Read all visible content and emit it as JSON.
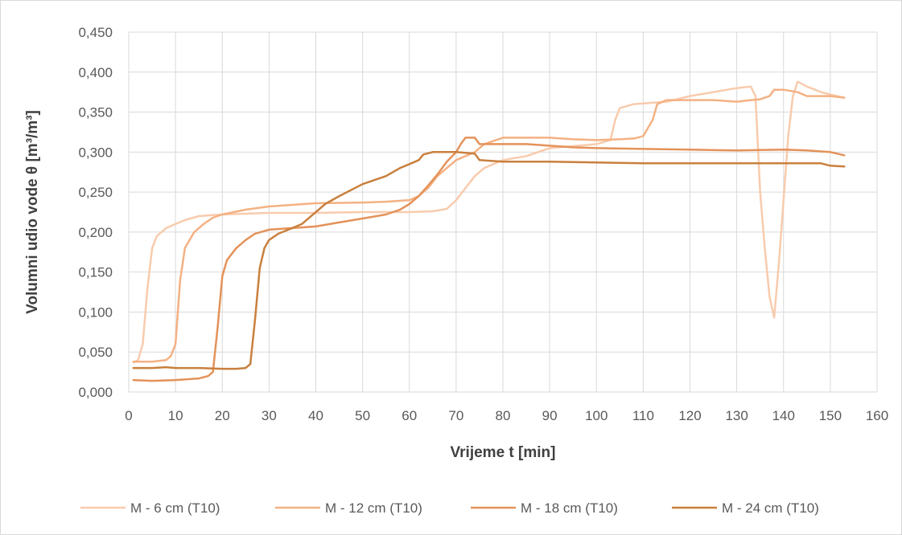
{
  "chart_data": {
    "type": "line",
    "title": "",
    "xlabel": "Vrijeme t [min]",
    "ylabel": "Volumni udio vode θ [m³/m³]",
    "xlim": [
      0,
      160
    ],
    "ylim": [
      0,
      0.45
    ],
    "x_ticks": [
      "0",
      "10",
      "20",
      "30",
      "40",
      "50",
      "60",
      "70",
      "80",
      "90",
      "100",
      "110",
      "120",
      "130",
      "140",
      "150",
      "160"
    ],
    "y_ticks": [
      "0,000",
      "0,050",
      "0,100",
      "0,150",
      "0,200",
      "0,250",
      "0,300",
      "0,350",
      "0,400",
      "0,450"
    ],
    "grid": true,
    "legend_position": "bottom",
    "series": [
      {
        "name": "M - 6 cm (T10)",
        "color": "#f8cbad",
        "points": [
          [
            1,
            0.037
          ],
          [
            2,
            0.04
          ],
          [
            3,
            0.06
          ],
          [
            4,
            0.13
          ],
          [
            5,
            0.18
          ],
          [
            6,
            0.195
          ],
          [
            8,
            0.205
          ],
          [
            10,
            0.21
          ],
          [
            12,
            0.215
          ],
          [
            15,
            0.22
          ],
          [
            20,
            0.222
          ],
          [
            25,
            0.223
          ],
          [
            30,
            0.224
          ],
          [
            40,
            0.224
          ],
          [
            50,
            0.225
          ],
          [
            60,
            0.225
          ],
          [
            65,
            0.226
          ],
          [
            68,
            0.229
          ],
          [
            70,
            0.24
          ],
          [
            72,
            0.255
          ],
          [
            74,
            0.27
          ],
          [
            76,
            0.28
          ],
          [
            80,
            0.29
          ],
          [
            85,
            0.295
          ],
          [
            90,
            0.305
          ],
          [
            100,
            0.31
          ],
          [
            103,
            0.315
          ],
          [
            104,
            0.34
          ],
          [
            105,
            0.355
          ],
          [
            108,
            0.36
          ],
          [
            115,
            0.363
          ],
          [
            120,
            0.37
          ],
          [
            125,
            0.375
          ],
          [
            130,
            0.38
          ],
          [
            133,
            0.382
          ],
          [
            134,
            0.37
          ],
          [
            135,
            0.25
          ],
          [
            136,
            0.18
          ],
          [
            137,
            0.12
          ],
          [
            138,
            0.093
          ],
          [
            139,
            0.16
          ],
          [
            140,
            0.24
          ],
          [
            141,
            0.32
          ],
          [
            142,
            0.37
          ],
          [
            143,
            0.388
          ],
          [
            145,
            0.382
          ],
          [
            148,
            0.375
          ],
          [
            150,
            0.372
          ],
          [
            153,
            0.368
          ]
        ]
      },
      {
        "name": "M - 12 cm (T10)",
        "color": "#f4b183",
        "points": [
          [
            1,
            0.038
          ],
          [
            5,
            0.038
          ],
          [
            8,
            0.04
          ],
          [
            9,
            0.045
          ],
          [
            10,
            0.06
          ],
          [
            11,
            0.14
          ],
          [
            12,
            0.18
          ],
          [
            14,
            0.2
          ],
          [
            16,
            0.21
          ],
          [
            18,
            0.218
          ],
          [
            20,
            0.222
          ],
          [
            25,
            0.228
          ],
          [
            30,
            0.232
          ],
          [
            35,
            0.234
          ],
          [
            40,
            0.236
          ],
          [
            50,
            0.237
          ],
          [
            55,
            0.238
          ],
          [
            60,
            0.24
          ],
          [
            62,
            0.245
          ],
          [
            64,
            0.255
          ],
          [
            66,
            0.27
          ],
          [
            68,
            0.28
          ],
          [
            70,
            0.29
          ],
          [
            72,
            0.295
          ],
          [
            74,
            0.3
          ],
          [
            76,
            0.31
          ],
          [
            80,
            0.318
          ],
          [
            90,
            0.318
          ],
          [
            95,
            0.316
          ],
          [
            100,
            0.315
          ],
          [
            105,
            0.316
          ],
          [
            108,
            0.317
          ],
          [
            110,
            0.32
          ],
          [
            112,
            0.34
          ],
          [
            113,
            0.36
          ],
          [
            115,
            0.365
          ],
          [
            120,
            0.365
          ],
          [
            125,
            0.365
          ],
          [
            130,
            0.363
          ],
          [
            133,
            0.365
          ],
          [
            135,
            0.366
          ],
          [
            137,
            0.37
          ],
          [
            138,
            0.378
          ],
          [
            140,
            0.378
          ],
          [
            143,
            0.375
          ],
          [
            145,
            0.37
          ],
          [
            150,
            0.37
          ],
          [
            153,
            0.368
          ]
        ]
      },
      {
        "name": "M - 18 cm (T10)",
        "color": "#e4925a",
        "points": [
          [
            1,
            0.015
          ],
          [
            5,
            0.014
          ],
          [
            10,
            0.015
          ],
          [
            15,
            0.017
          ],
          [
            17,
            0.02
          ],
          [
            18,
            0.025
          ],
          [
            19,
            0.08
          ],
          [
            20,
            0.145
          ],
          [
            21,
            0.165
          ],
          [
            23,
            0.18
          ],
          [
            25,
            0.19
          ],
          [
            27,
            0.198
          ],
          [
            30,
            0.203
          ],
          [
            35,
            0.205
          ],
          [
            40,
            0.207
          ],
          [
            45,
            0.212
          ],
          [
            50,
            0.217
          ],
          [
            55,
            0.222
          ],
          [
            58,
            0.228
          ],
          [
            60,
            0.235
          ],
          [
            62,
            0.245
          ],
          [
            64,
            0.258
          ],
          [
            66,
            0.272
          ],
          [
            68,
            0.288
          ],
          [
            70,
            0.3
          ],
          [
            71,
            0.31
          ],
          [
            72,
            0.318
          ],
          [
            74,
            0.318
          ],
          [
            75,
            0.31
          ],
          [
            80,
            0.31
          ],
          [
            85,
            0.31
          ],
          [
            90,
            0.308
          ],
          [
            95,
            0.306
          ],
          [
            100,
            0.305
          ],
          [
            110,
            0.304
          ],
          [
            120,
            0.303
          ],
          [
            130,
            0.302
          ],
          [
            140,
            0.303
          ],
          [
            145,
            0.302
          ],
          [
            150,
            0.3
          ],
          [
            153,
            0.296
          ]
        ]
      },
      {
        "name": "M - 24 cm (T10)",
        "color": "#c9803e",
        "points": [
          [
            1,
            0.03
          ],
          [
            5,
            0.03
          ],
          [
            8,
            0.031
          ],
          [
            10,
            0.03
          ],
          [
            15,
            0.03
          ],
          [
            20,
            0.029
          ],
          [
            23,
            0.029
          ],
          [
            25,
            0.03
          ],
          [
            26,
            0.035
          ],
          [
            27,
            0.09
          ],
          [
            28,
            0.155
          ],
          [
            29,
            0.18
          ],
          [
            30,
            0.19
          ],
          [
            32,
            0.198
          ],
          [
            35,
            0.205
          ],
          [
            37,
            0.21
          ],
          [
            40,
            0.225
          ],
          [
            42,
            0.235
          ],
          [
            45,
            0.245
          ],
          [
            50,
            0.26
          ],
          [
            55,
            0.27
          ],
          [
            58,
            0.28
          ],
          [
            60,
            0.285
          ],
          [
            62,
            0.29
          ],
          [
            63,
            0.297
          ],
          [
            65,
            0.3
          ],
          [
            70,
            0.3
          ],
          [
            74,
            0.298
          ],
          [
            75,
            0.29
          ],
          [
            80,
            0.288
          ],
          [
            90,
            0.288
          ],
          [
            100,
            0.287
          ],
          [
            110,
            0.286
          ],
          [
            120,
            0.286
          ],
          [
            130,
            0.286
          ],
          [
            140,
            0.286
          ],
          [
            148,
            0.286
          ],
          [
            150,
            0.283
          ],
          [
            153,
            0.282
          ]
        ]
      }
    ]
  }
}
